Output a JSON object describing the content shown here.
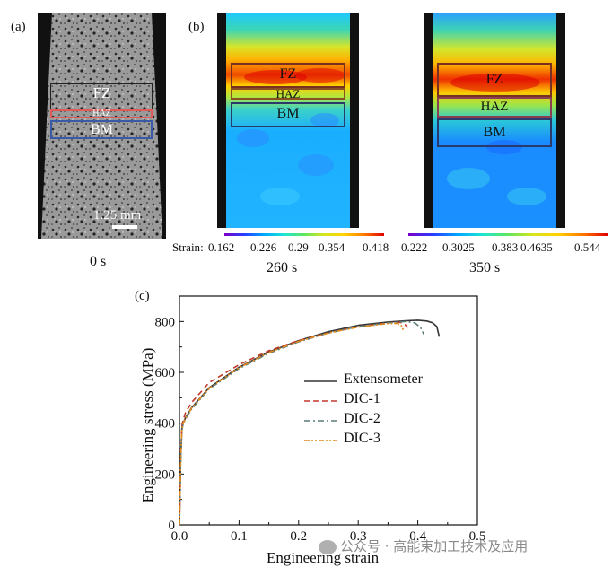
{
  "panel_a": {
    "label": "(a)",
    "regions": {
      "fz": "FZ",
      "haz": "HAZ",
      "bm": "BM"
    },
    "scale_bar": "1.25 mm",
    "time": "0 s"
  },
  "panel_b": {
    "label": "(b)",
    "maps": [
      {
        "time": "260 s",
        "regions": {
          "fz": "FZ",
          "haz": "HAZ",
          "bm": "BM"
        }
      },
      {
        "time": "350 s",
        "regions": {
          "fz": "FZ",
          "haz": "HAZ",
          "bm": "BM"
        }
      }
    ],
    "colorbar_title": "Strain",
    "colorbar_1_ticks": [
      "0.162",
      "0.226",
      "0.29",
      "0.354",
      "0.418"
    ],
    "colorbar_2_ticks": [
      "0.222",
      "0.3025",
      "0.383",
      "0.4635",
      "0.544"
    ]
  },
  "panel_c": {
    "label": "(c)"
  },
  "chart_data": {
    "type": "line",
    "xlabel": "Engineering strain",
    "ylabel": "Engineering stress (MPa)",
    "xlim": [
      0,
      0.5
    ],
    "ylim": [
      0,
      900
    ],
    "x_ticks": [
      "0.0",
      "0.1",
      "0.2",
      "0.3",
      "0.4",
      "0.5"
    ],
    "y_ticks": [
      "0",
      "200",
      "400",
      "600",
      "800"
    ],
    "legend_position": "center-right",
    "series": [
      {
        "name": "Extensometer",
        "style": "solid",
        "color": "#333333",
        "x": [
          0,
          0.002,
          0.004,
          0.006,
          0.01,
          0.02,
          0.05,
          0.1,
          0.15,
          0.2,
          0.25,
          0.3,
          0.35,
          0.38,
          0.4,
          0.415,
          0.425,
          0.432,
          0.436
        ],
        "y": [
          0,
          250,
          380,
          400,
          420,
          460,
          540,
          620,
          680,
          725,
          760,
          785,
          798,
          803,
          805,
          802,
          795,
          780,
          740
        ]
      },
      {
        "name": "DIC-1",
        "style": "dashed",
        "color": "#c0392b",
        "x": [
          0,
          0.002,
          0.004,
          0.006,
          0.01,
          0.02,
          0.05,
          0.1,
          0.15,
          0.2,
          0.25,
          0.3,
          0.35,
          0.37,
          0.378,
          0.383
        ],
        "y": [
          0,
          260,
          390,
          410,
          440,
          480,
          560,
          630,
          685,
          725,
          755,
          780,
          795,
          797,
          790,
          775
        ]
      },
      {
        "name": "DIC-2",
        "style": "dashdot",
        "color": "#5a7a78",
        "x": [
          0,
          0.002,
          0.004,
          0.006,
          0.01,
          0.02,
          0.05,
          0.1,
          0.15,
          0.2,
          0.25,
          0.3,
          0.35,
          0.38,
          0.395,
          0.405,
          0.41
        ],
        "y": [
          0,
          240,
          370,
          395,
          415,
          455,
          535,
          615,
          675,
          720,
          755,
          780,
          795,
          800,
          795,
          775,
          750
        ]
      },
      {
        "name": "DIC-3",
        "style": "dashdotdot",
        "color": "#e08a1e",
        "x": [
          0,
          0.002,
          0.004,
          0.006,
          0.01,
          0.02,
          0.05,
          0.1,
          0.15,
          0.2,
          0.25,
          0.3,
          0.35,
          0.365,
          0.372,
          0.376
        ],
        "y": [
          0,
          245,
          375,
          398,
          418,
          458,
          538,
          618,
          678,
          722,
          755,
          778,
          792,
          793,
          785,
          765
        ]
      }
    ]
  },
  "watermark": "公众号 · 高能束加工技术及应用"
}
